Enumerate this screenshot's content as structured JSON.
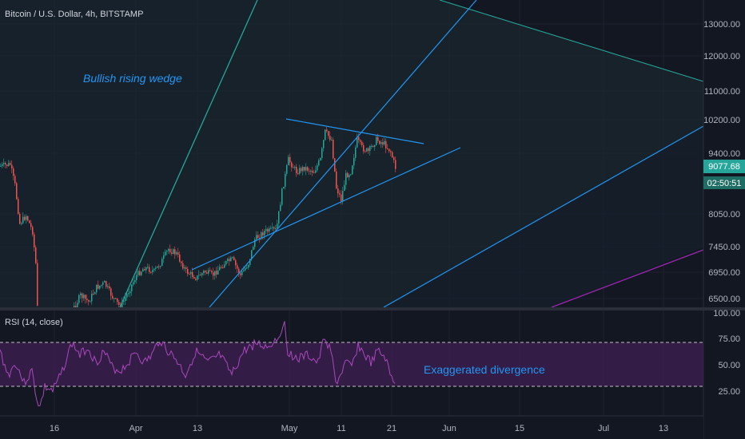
{
  "header": {
    "symbol": "Bitcoin / U.S. Dollar, 4h, BITSTAMP"
  },
  "colors": {
    "background": "#131722",
    "grid": "#1f2433",
    "up": "#26a69a",
    "down": "#ef5350",
    "wedge_line": "#2196f3",
    "fan_teal": "#26a69a",
    "magenta_line": "#9c27b0",
    "rsi_line": "#ab47bc",
    "rsi_band": "#3a1f4d",
    "price_badge": "#26a69a",
    "annotation": "#2196f3"
  },
  "annotations": {
    "wedge": "Bullish rising wedge",
    "divergence": "Exaggerated divergence"
  },
  "price_axis": {
    "ticks": [
      "13000.00",
      "12000.00",
      "11000.00",
      "10200.00",
      "9400.00",
      "8050.00",
      "7450.00",
      "6950.00",
      "6500.00"
    ],
    "last_price": "9077.68",
    "countdown": "02:50:51"
  },
  "rsi": {
    "title": "RSI (14, close)",
    "ticks": [
      "100.00",
      "75.00",
      "50.00",
      "25.00"
    ],
    "upper": 70,
    "lower": 30
  },
  "time_axis": {
    "ticks": [
      "16",
      "Apr",
      "13",
      "May",
      "11",
      "21",
      "Jun",
      "15",
      "Jul",
      "13"
    ]
  },
  "chart_data": {
    "type": "candlestick",
    "title": "Bitcoin / U.S. Dollar, 4h, BITSTAMP",
    "timeframe": "4h",
    "ylim": [
      6300,
      13600
    ],
    "log_scale": true,
    "grid": true,
    "last_price": 9077.68,
    "rsi": {
      "period": 14,
      "source": "close",
      "ylim": [
        0,
        100
      ],
      "bands": [
        30,
        70
      ]
    },
    "x_ticks": [
      "16",
      "Apr",
      "13",
      "May",
      "11",
      "21",
      "Jun",
      "15",
      "Jul",
      "13"
    ],
    "y_ticks": [
      13000,
      12000,
      11000,
      10200,
      9400,
      8050,
      7450,
      6950,
      6500
    ]
  }
}
